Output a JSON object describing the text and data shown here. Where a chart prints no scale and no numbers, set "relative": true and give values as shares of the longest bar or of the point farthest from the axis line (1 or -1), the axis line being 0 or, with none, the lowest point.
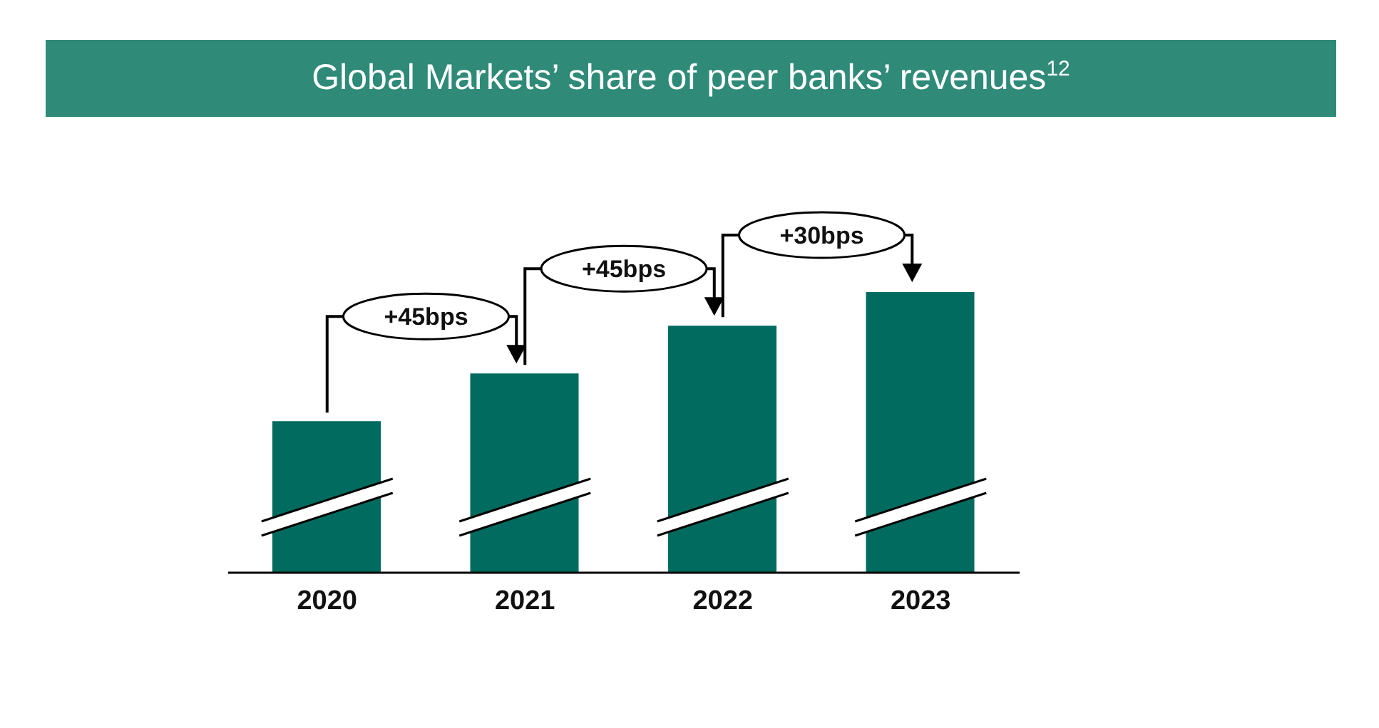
{
  "chart_data": {
    "type": "bar",
    "title": "Global Markets’ share of peer banks’ revenues$^{12}$",
    "relative": true,
    "categories": [
      "2020",
      "2021",
      "2022",
      "2023"
    ],
    "values": [
      0.54,
      0.71,
      0.88,
      1
    ],
    "color": "#006b5e",
    "annotations": [
      "+45bps",
      "+45bps",
      "+30bps"
    ],
    "grid": false,
    "legend": false
  }
}
